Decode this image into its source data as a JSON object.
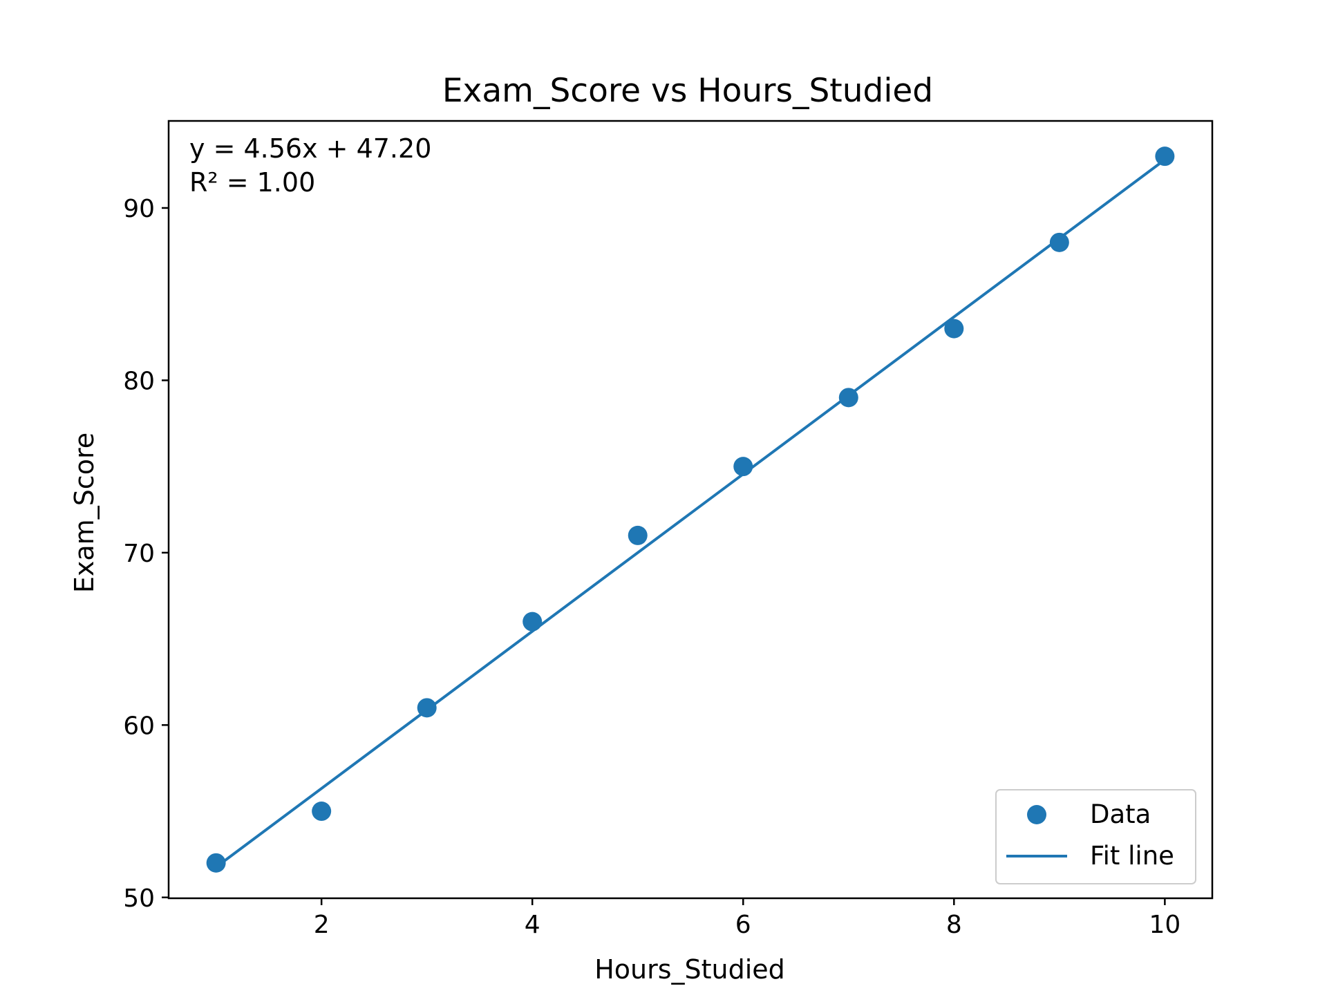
{
  "chart_data": {
    "type": "scatter",
    "title": "Exam_Score vs Hours_Studied",
    "xlabel": "Hours_Studied",
    "ylabel": "Exam_Score",
    "xlim": [
      0.55,
      10.45
    ],
    "ylim": [
      49.95,
      95.05
    ],
    "xticks": [
      2,
      4,
      6,
      8,
      10
    ],
    "yticks": [
      50,
      60,
      70,
      80,
      90
    ],
    "grid": false,
    "legend_position": "lower-right",
    "series": [
      {
        "name": "Data",
        "kind": "scatter",
        "color": "#1f77b4",
        "x": [
          1,
          2,
          3,
          4,
          5,
          6,
          7,
          8,
          9,
          10
        ],
        "y": [
          52,
          55,
          61,
          66,
          71,
          75,
          79,
          83,
          88,
          93
        ]
      },
      {
        "name": "Fit line",
        "kind": "line",
        "color": "#1f77b4",
        "slope": 4.56,
        "intercept": 47.2,
        "x_range": [
          1,
          10
        ]
      }
    ],
    "annotations": [
      "y = 4.56x + 47.20",
      "R² = 1.00"
    ]
  }
}
